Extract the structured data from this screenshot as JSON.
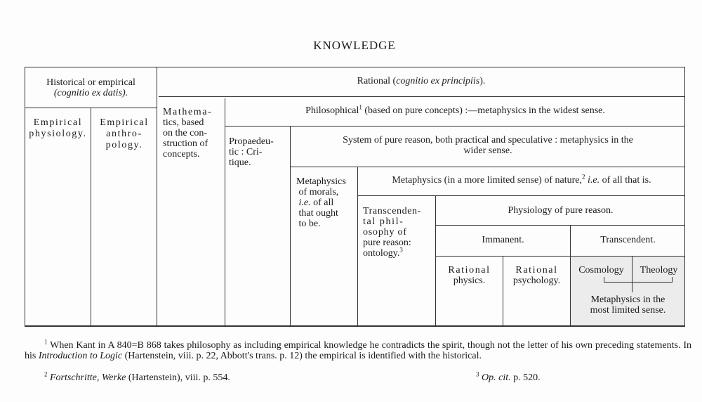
{
  "title": "KNOWLEDGE",
  "table": {
    "historical": {
      "label": "Historical or empirical",
      "latin": "(cognitio ex datis)."
    },
    "empirical_physiology": "Empirical physiology.",
    "empirical_anthropology": {
      "l1": "Empirical",
      "l2": "anthro-",
      "l3": "pology."
    },
    "rational": {
      "label": "Rational (",
      "latin": "cognitio ex principiis",
      "end": ")."
    },
    "mathematics": {
      "l1": "Mathema-",
      "l2": "tics, based",
      "l3": "on the con-",
      "l4": "struction of",
      "l5": "concepts."
    },
    "philosophical": {
      "label": "Philosophical",
      "note": "1",
      "rest": " (based on pure concepts) :—metaphysics in the widest sense."
    },
    "propaedeutic": {
      "l1": "Propaedeu-",
      "l2": "tic :  Cri-",
      "l3": "tique."
    },
    "system": {
      "l1": "System of pure reason, both practical and speculative :  metaphysics in the",
      "l2": "wider sense."
    },
    "morals": {
      "l1": "Metaphysics",
      "l2": "of  morals,",
      "l3a": "i.e.",
      "l3b": " of  all",
      "l4": "that  ought",
      "l5": "to be."
    },
    "nature": {
      "a": "Metaphysics (in a more limited sense) of nature,",
      "note": "2",
      "ie": "i.e.",
      "b": " of all that is."
    },
    "transcendental": {
      "l1": "Transcenden-",
      "l2": "tal   phil-",
      "l3": "osophy  of",
      "l4": "pure reason:",
      "l5": "ontology.",
      "note": "3"
    },
    "physiology": "Physiology of pure reason.",
    "immanent": "Immanent.",
    "transcendent": "Transcendent.",
    "rational_physics": {
      "l1": "Rational",
      "l2": "physics."
    },
    "rational_psychology": {
      "l1": "Rational",
      "l2": "psychology."
    },
    "cosmology": "Cosmology",
    "theology": "Theology",
    "limited": {
      "l1": "Metaphysics in the",
      "l2": "most limited sense."
    }
  },
  "footnotes": {
    "f1": {
      "num": "1",
      "a": " When Kant in A 840=B 868 takes philosophy as including empirical knowledge he contradicts the spirit, though not the letter of his own preceding statements.  In his ",
      "title": "Introduction to Logic",
      "b": " (Hartenstein, viii. p. 22, Abbott's trans. p. 12) the empirical is identified with the historical."
    },
    "f2": {
      "num": "2",
      "title": "Fortschritte, Werke",
      "rest": " (Hartenstein), viii. p. 554."
    },
    "f3": {
      "num": "3",
      "title": "Op. cit.",
      "rest": " p. 520."
    }
  }
}
